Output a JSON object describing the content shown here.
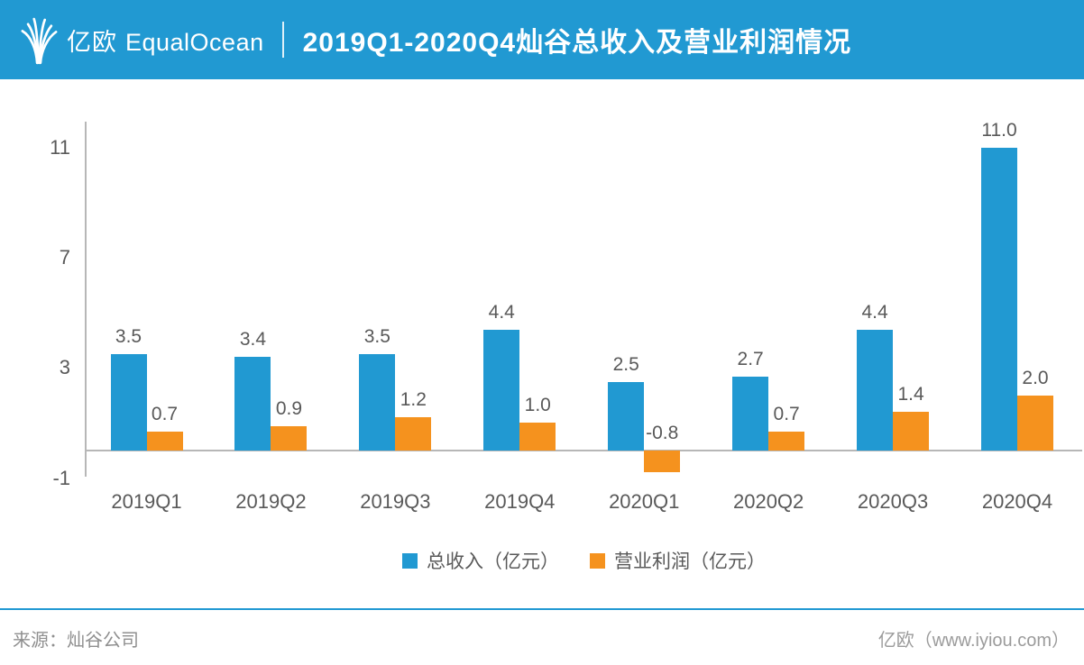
{
  "colors": {
    "accent_blue": "#2199D2",
    "bar_blue": "#2199D2",
    "bar_orange": "#F5921E",
    "text_gray": "#595959",
    "axis_gray": "#B7B7B7"
  },
  "header": {
    "brand_cn": "亿欧",
    "brand_en": "EqualOcean",
    "title": "2019Q1-2020Q4灿谷总收入及营业利润情况"
  },
  "chart_data": {
    "type": "bar",
    "title": "2019Q1-2020Q4灿谷总收入及营业利润情况",
    "categories": [
      "2019Q1",
      "2019Q2",
      "2019Q3",
      "2019Q4",
      "2020Q1",
      "2020Q2",
      "2020Q3",
      "2020Q4"
    ],
    "series": [
      {
        "name": "总收入（亿元）",
        "color": "#2199D2",
        "values": [
          3.5,
          3.4,
          3.5,
          4.4,
          2.5,
          2.7,
          4.4,
          11.0
        ]
      },
      {
        "name": "营业利润（亿元）",
        "color": "#F5921E",
        "values": [
          0.7,
          0.9,
          1.2,
          1.0,
          -0.8,
          0.7,
          1.4,
          2.0
        ]
      }
    ],
    "yticks": [
      11,
      7,
      3,
      -1
    ],
    "ylim": [
      -1.3,
      12
    ],
    "value_label_decimals": 1,
    "grid": false,
    "legend_position": "bottom"
  },
  "footer": {
    "source": "来源：灿谷公司",
    "credit": "亿欧（www.iyiou.com）"
  }
}
